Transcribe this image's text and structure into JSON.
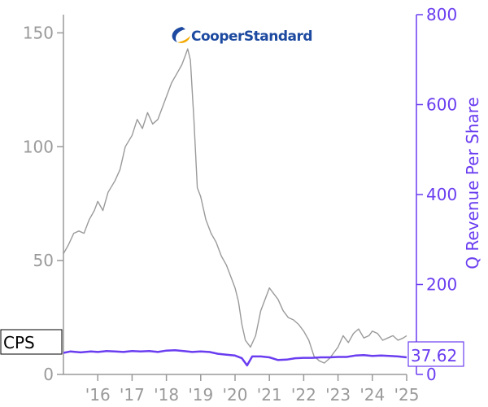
{
  "chart_data": {
    "type": "line",
    "ticker": "CPS",
    "logo_text": "CooperStandard",
    "last_value_label": "37.62",
    "ylabel_right": "Q Revenue Per Share",
    "left_axis": {
      "ylim": [
        0,
        158
      ],
      "ticks": [
        0,
        50,
        100,
        150
      ],
      "color": "#9a9a9a"
    },
    "right_axis": {
      "ylim": [
        0,
        800
      ],
      "ticks": [
        0,
        200,
        400,
        600,
        800
      ],
      "color": "#6a3df0"
    },
    "xlim": [
      2015.0,
      2025.0
    ],
    "x_ticks": [
      2016,
      2017,
      2018,
      2019,
      2020,
      2021,
      2022,
      2023,
      2024,
      2025
    ],
    "x_tick_labels": [
      "'16",
      "'17",
      "'18",
      "'19",
      "'20",
      "'21",
      "'22",
      "'23",
      "'24",
      "'25"
    ],
    "series": [
      {
        "axis": "left",
        "color": "#9a9a9a",
        "x": [
          2015.0,
          2015.15,
          2015.3,
          2015.45,
          2015.6,
          2015.75,
          2015.9,
          2016.0,
          2016.15,
          2016.3,
          2016.5,
          2016.65,
          2016.8,
          2017.0,
          2017.15,
          2017.3,
          2017.45,
          2017.6,
          2017.75,
          2017.9,
          2018.0,
          2018.15,
          2018.3,
          2018.45,
          2018.55,
          2018.62,
          2018.7,
          2018.8,
          2018.9,
          2019.0,
          2019.15,
          2019.3,
          2019.45,
          2019.6,
          2019.75,
          2019.9,
          2020.0,
          2020.1,
          2020.2,
          2020.3,
          2020.45,
          2020.6,
          2020.75,
          2020.9,
          2021.0,
          2021.1,
          2021.25,
          2021.4,
          2021.55,
          2021.7,
          2021.85,
          2022.0,
          2022.15,
          2022.3,
          2022.45,
          2022.6,
          2022.75,
          2022.9,
          2023.0,
          2023.15,
          2023.3,
          2023.45,
          2023.6,
          2023.75,
          2023.9,
          2024.0,
          2024.15,
          2024.3,
          2024.45,
          2024.6,
          2024.75,
          2024.9,
          2025.0
        ],
        "y": [
          53,
          57,
          62,
          63,
          62,
          68,
          72,
          76,
          72,
          80,
          85,
          90,
          100,
          105,
          112,
          108,
          115,
          110,
          112,
          118,
          122,
          128,
          132,
          136,
          140,
          143,
          138,
          112,
          82,
          78,
          68,
          62,
          58,
          52,
          48,
          42,
          38,
          32,
          22,
          15,
          12,
          17,
          28,
          34,
          38,
          36,
          33,
          28,
          25,
          24,
          22,
          19,
          15,
          8,
          6,
          5,
          7,
          10,
          12,
          17,
          14,
          18,
          20,
          16,
          17,
          19,
          18,
          15,
          16,
          17,
          15,
          16,
          17
        ]
      },
      {
        "axis": "right",
        "color": "#6a3df0",
        "x": [
          2015.0,
          2015.2,
          2015.5,
          2015.8,
          2016.0,
          2016.25,
          2016.5,
          2016.75,
          2017.0,
          2017.25,
          2017.5,
          2017.75,
          2018.0,
          2018.25,
          2018.5,
          2018.75,
          2019.0,
          2019.25,
          2019.5,
          2019.75,
          2020.0,
          2020.2,
          2020.35,
          2020.5,
          2020.75,
          2021.0,
          2021.25,
          2021.5,
          2021.75,
          2022.0,
          2022.25,
          2022.5,
          2022.75,
          2023.0,
          2023.25,
          2023.5,
          2023.75,
          2024.0,
          2024.25,
          2024.5,
          2024.75,
          2025.0
        ],
        "y": [
          48,
          51,
          49,
          51,
          50,
          52,
          51,
          50,
          52,
          51,
          52,
          50,
          53,
          54,
          52,
          50,
          51,
          50,
          46,
          44,
          42,
          36,
          20,
          40,
          40,
          38,
          32,
          33,
          36,
          37,
          37,
          38,
          38,
          39,
          39,
          42,
          43,
          41,
          42,
          41,
          40,
          38
        ]
      }
    ]
  }
}
